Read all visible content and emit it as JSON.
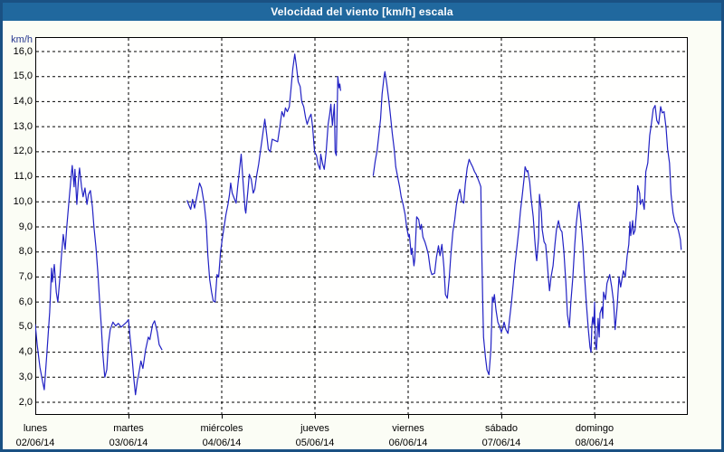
{
  "title": "Velocidad del viento [km/h] escala",
  "chart_data": {
    "type": "line",
    "title": "Velocidad del viento [km/h] escala",
    "y_unit_label": "km/h",
    "ylabel": "km/h",
    "y_tick_labels": [
      "16,0",
      "15,0",
      "14,0",
      "13,0",
      "12,0",
      "11,0",
      "10,0",
      "9,0",
      "8,0",
      "7,0",
      "6,0",
      "5,0",
      "4,0",
      "3,0",
      "2,0"
    ],
    "ylim": [
      2,
      16
    ],
    "y_step": 1.0,
    "grid": "dashed",
    "legend": "none",
    "line_color": "#2222c4",
    "x_span_hours": 168,
    "x_days": [
      {
        "name": "lunes",
        "date": "02/06/14"
      },
      {
        "name": "martes",
        "date": "03/06/14"
      },
      {
        "name": "miércoles",
        "date": "04/06/14"
      },
      {
        "name": "jueves",
        "date": "05/06/14"
      },
      {
        "name": "viernes",
        "date": "06/06/14"
      },
      {
        "name": "sábado",
        "date": "07/06/14"
      },
      {
        "name": "domingo",
        "date": "08/06/14"
      }
    ],
    "note": "wind speed km/h sampled over 7 days; two data gaps (t≈32.6-39.1h and t≈78.6-87.0h)",
    "segments": [
      [
        [
          0.0,
          5.1
        ],
        [
          0.5,
          4.3
        ],
        [
          1.2,
          3.4
        ],
        [
          1.9,
          2.8
        ],
        [
          2.3,
          2.5
        ],
        [
          3.0,
          4.0
        ],
        [
          3.7,
          5.6
        ],
        [
          4.2,
          7.35
        ],
        [
          4.4,
          6.8
        ],
        [
          4.9,
          7.5
        ],
        [
          5.4,
          6.4
        ],
        [
          5.8,
          6.0
        ],
        [
          6.3,
          6.9
        ],
        [
          6.7,
          7.8
        ],
        [
          7.2,
          8.7
        ],
        [
          7.7,
          8.1
        ],
        [
          8.1,
          9.0
        ],
        [
          8.6,
          9.9
        ],
        [
          9.1,
          10.8
        ],
        [
          9.5,
          11.45
        ],
        [
          10.0,
          10.6
        ],
        [
          10.2,
          11.3
        ],
        [
          10.7,
          9.9
        ],
        [
          11.2,
          11.1
        ],
        [
          11.4,
          11.35
        ],
        [
          11.9,
          10.6
        ],
        [
          12.3,
          10.2
        ],
        [
          12.8,
          10.55
        ],
        [
          13.3,
          9.9
        ],
        [
          13.7,
          10.3
        ],
        [
          14.2,
          10.45
        ],
        [
          14.7,
          9.8
        ],
        [
          15.1,
          9.0
        ],
        [
          15.6,
          8.2
        ],
        [
          16.1,
          7.2
        ],
        [
          16.5,
          6.2
        ],
        [
          17.0,
          5.0
        ],
        [
          17.4,
          3.9
        ],
        [
          17.9,
          3.0
        ],
        [
          18.4,
          3.3
        ],
        [
          18.8,
          4.3
        ],
        [
          19.3,
          4.9
        ],
        [
          20.0,
          5.2
        ],
        [
          20.7,
          5.05
        ],
        [
          21.4,
          5.15
        ],
        [
          22.1,
          5.0
        ],
        [
          22.8,
          5.1
        ],
        [
          23.5,
          5.2
        ],
        [
          24.0,
          5.3
        ],
        [
          24.4,
          4.6
        ],
        [
          24.9,
          3.8
        ],
        [
          25.4,
          2.9
        ],
        [
          25.8,
          2.3
        ],
        [
          26.3,
          2.9
        ],
        [
          26.5,
          3.0
        ],
        [
          27.2,
          3.65
        ],
        [
          27.7,
          3.35
        ],
        [
          28.4,
          4.1
        ],
        [
          29.1,
          4.6
        ],
        [
          29.5,
          4.5
        ],
        [
          30.2,
          5.1
        ],
        [
          30.7,
          5.25
        ],
        [
          31.4,
          4.8
        ],
        [
          31.9,
          4.3
        ],
        [
          32.6,
          4.1
        ]
      ],
      [
        [
          39.1,
          10.05
        ],
        [
          39.6,
          9.85
        ],
        [
          40.0,
          9.7
        ],
        [
          40.5,
          10.1
        ],
        [
          41.0,
          9.75
        ],
        [
          41.7,
          10.3
        ],
        [
          42.3,
          10.75
        ],
        [
          42.8,
          10.55
        ],
        [
          43.5,
          9.9
        ],
        [
          44.0,
          9.2
        ],
        [
          44.4,
          7.9
        ],
        [
          44.9,
          6.9
        ],
        [
          45.4,
          6.4
        ],
        [
          45.8,
          6.05
        ],
        [
          46.3,
          6.0
        ],
        [
          46.8,
          7.1
        ],
        [
          47.2,
          7.0
        ],
        [
          47.7,
          8.0
        ],
        [
          48.2,
          8.6
        ],
        [
          48.6,
          9.0
        ],
        [
          49.1,
          9.5
        ],
        [
          49.6,
          9.9
        ],
        [
          50.0,
          10.3
        ],
        [
          50.3,
          10.75
        ],
        [
          50.7,
          10.35
        ],
        [
          51.2,
          10.15
        ],
        [
          51.7,
          9.95
        ],
        [
          52.1,
          10.6
        ],
        [
          52.6,
          11.3
        ],
        [
          53.0,
          11.9
        ],
        [
          53.5,
          10.8
        ],
        [
          54.0,
          9.7
        ],
        [
          54.2,
          9.55
        ],
        [
          54.7,
          10.4
        ],
        [
          55.1,
          11.1
        ],
        [
          55.6,
          10.9
        ],
        [
          56.1,
          10.35
        ],
        [
          56.5,
          10.5
        ],
        [
          57.0,
          11.05
        ],
        [
          57.5,
          11.5
        ],
        [
          57.9,
          11.95
        ],
        [
          58.4,
          12.5
        ],
        [
          59.1,
          13.3
        ],
        [
          59.6,
          12.65
        ],
        [
          60.0,
          12.1
        ],
        [
          60.5,
          12.0
        ],
        [
          61.0,
          12.5
        ],
        [
          61.7,
          12.45
        ],
        [
          62.4,
          12.4
        ],
        [
          63.0,
          13.05
        ],
        [
          63.5,
          13.6
        ],
        [
          64.0,
          13.4
        ],
        [
          64.4,
          13.75
        ],
        [
          64.9,
          13.6
        ],
        [
          65.4,
          13.8
        ],
        [
          65.8,
          14.45
        ],
        [
          66.3,
          15.3
        ],
        [
          66.8,
          15.9
        ],
        [
          67.2,
          15.45
        ],
        [
          67.7,
          14.8
        ],
        [
          68.2,
          14.6
        ],
        [
          68.6,
          14.0
        ],
        [
          69.1,
          13.8
        ],
        [
          69.6,
          13.35
        ],
        [
          70.0,
          13.1
        ],
        [
          70.5,
          13.35
        ],
        [
          71.0,
          13.5
        ],
        [
          71.4,
          13.0
        ],
        [
          71.9,
          12.0
        ],
        [
          72.4,
          11.85
        ],
        [
          72.8,
          11.5
        ],
        [
          73.3,
          11.3
        ],
        [
          73.5,
          11.9
        ],
        [
          74.0,
          11.5
        ],
        [
          74.4,
          11.3
        ],
        [
          74.9,
          12.0
        ],
        [
          75.4,
          13.1
        ],
        [
          75.8,
          13.5
        ],
        [
          76.1,
          13.9
        ],
        [
          76.5,
          13.05
        ],
        [
          77.0,
          13.9
        ],
        [
          77.2,
          12.0
        ],
        [
          77.5,
          11.85
        ],
        [
          77.9,
          15.0
        ],
        [
          78.2,
          14.55
        ],
        [
          78.4,
          14.7
        ],
        [
          78.6,
          14.45
        ]
      ],
      [
        [
          87.0,
          11.05
        ],
        [
          87.5,
          11.6
        ],
        [
          88.0,
          12.05
        ],
        [
          88.4,
          12.6
        ],
        [
          88.9,
          13.3
        ],
        [
          89.3,
          14.3
        ],
        [
          89.8,
          15.0
        ],
        [
          90.0,
          15.2
        ],
        [
          90.5,
          14.7
        ],
        [
          91.0,
          14.1
        ],
        [
          91.4,
          13.5
        ],
        [
          91.9,
          12.75
        ],
        [
          92.4,
          12.1
        ],
        [
          92.8,
          11.4
        ],
        [
          93.3,
          11.0
        ],
        [
          93.8,
          10.6
        ],
        [
          94.2,
          10.2
        ],
        [
          94.7,
          9.9
        ],
        [
          95.2,
          9.5
        ],
        [
          95.6,
          9.0
        ],
        [
          96.1,
          8.6
        ],
        [
          96.3,
          8.7
        ],
        [
          96.8,
          7.9
        ],
        [
          97.0,
          8.15
        ],
        [
          97.5,
          7.45
        ],
        [
          97.7,
          7.7
        ],
        [
          98.2,
          9.4
        ],
        [
          98.7,
          9.3
        ],
        [
          99.1,
          8.9
        ],
        [
          99.4,
          9.1
        ],
        [
          99.8,
          8.6
        ],
        [
          100.3,
          8.4
        ],
        [
          100.7,
          8.2
        ],
        [
          101.2,
          7.9
        ],
        [
          101.7,
          7.3
        ],
        [
          102.1,
          7.1
        ],
        [
          102.8,
          7.15
        ],
        [
          103.3,
          7.8
        ],
        [
          103.8,
          8.25
        ],
        [
          104.2,
          7.85
        ],
        [
          104.7,
          8.3
        ],
        [
          105.2,
          7.4
        ],
        [
          105.6,
          6.3
        ],
        [
          106.1,
          6.15
        ],
        [
          106.6,
          7.0
        ],
        [
          107.0,
          7.9
        ],
        [
          107.5,
          8.8
        ],
        [
          108.0,
          9.3
        ],
        [
          108.4,
          9.85
        ],
        [
          108.9,
          10.3
        ],
        [
          109.3,
          10.5
        ],
        [
          109.8,
          10.05
        ],
        [
          110.3,
          9.95
        ],
        [
          110.7,
          10.7
        ],
        [
          111.2,
          11.35
        ],
        [
          111.7,
          11.7
        ],
        [
          112.1,
          11.55
        ],
        [
          112.6,
          11.4
        ],
        [
          113.1,
          11.2
        ],
        [
          113.5,
          11.1
        ],
        [
          114.0,
          10.9
        ],
        [
          114.5,
          10.7
        ],
        [
          114.7,
          10.6
        ],
        [
          114.9,
          8.5
        ],
        [
          115.2,
          6.0
        ],
        [
          115.4,
          4.6
        ],
        [
          115.9,
          3.8
        ],
        [
          116.3,
          3.3
        ],
        [
          116.8,
          3.1
        ],
        [
          117.3,
          4.1
        ],
        [
          117.7,
          6.2
        ],
        [
          117.9,
          6.0
        ],
        [
          118.2,
          6.3
        ],
        [
          118.6,
          5.7
        ],
        [
          119.1,
          5.2
        ],
        [
          119.6,
          5.0
        ],
        [
          120.0,
          4.8
        ],
        [
          120.5,
          5.05
        ],
        [
          120.7,
          5.2
        ],
        [
          121.2,
          4.9
        ],
        [
          121.7,
          4.75
        ],
        [
          122.1,
          5.3
        ],
        [
          122.6,
          6.0
        ],
        [
          123.1,
          6.8
        ],
        [
          123.5,
          7.5
        ],
        [
          124.0,
          8.2
        ],
        [
          124.5,
          8.9
        ],
        [
          124.9,
          9.6
        ],
        [
          125.4,
          10.3
        ],
        [
          125.9,
          11.0
        ],
        [
          126.1,
          11.4
        ],
        [
          126.6,
          11.2
        ],
        [
          126.8,
          11.25
        ],
        [
          127.3,
          10.8
        ],
        [
          127.7,
          10.1
        ],
        [
          128.2,
          9.4
        ],
        [
          128.6,
          8.5
        ],
        [
          128.9,
          7.9
        ],
        [
          129.1,
          7.65
        ],
        [
          129.6,
          8.6
        ],
        [
          129.8,
          10.3
        ],
        [
          130.3,
          9.6
        ],
        [
          130.5,
          8.9
        ],
        [
          131.0,
          8.4
        ],
        [
          131.4,
          8.3
        ],
        [
          131.7,
          7.8
        ],
        [
          132.1,
          7.0
        ],
        [
          132.4,
          6.45
        ],
        [
          132.8,
          7.0
        ],
        [
          133.3,
          7.45
        ],
        [
          133.8,
          8.3
        ],
        [
          134.2,
          8.9
        ],
        [
          134.7,
          9.25
        ],
        [
          135.2,
          8.9
        ],
        [
          135.6,
          8.8
        ],
        [
          136.1,
          8.0
        ],
        [
          136.6,
          6.8
        ],
        [
          137.0,
          5.5
        ],
        [
          137.5,
          5.0
        ],
        [
          137.9,
          6.0
        ],
        [
          138.4,
          7.0
        ],
        [
          138.9,
          8.3
        ],
        [
          139.3,
          9.15
        ],
        [
          139.8,
          9.85
        ],
        [
          140.0,
          10.0
        ],
        [
          140.5,
          9.15
        ],
        [
          141.0,
          8.2
        ],
        [
          141.4,
          7.1
        ],
        [
          141.9,
          5.9
        ],
        [
          142.4,
          4.9
        ],
        [
          142.8,
          4.2
        ],
        [
          143.1,
          4.0
        ],
        [
          143.3,
          5.05
        ],
        [
          143.5,
          5.4
        ],
        [
          143.8,
          5.1
        ],
        [
          144.0,
          6.0
        ],
        [
          144.2,
          4.3
        ],
        [
          144.5,
          4.1
        ],
        [
          144.9,
          5.35
        ],
        [
          145.2,
          4.6
        ],
        [
          145.4,
          5.55
        ],
        [
          145.9,
          5.8
        ],
        [
          146.1,
          5.35
        ],
        [
          146.3,
          6.4
        ],
        [
          146.8,
          6.1
        ],
        [
          147.2,
          6.75
        ],
        [
          147.7,
          7.0
        ],
        [
          147.9,
          7.1
        ],
        [
          148.4,
          6.6
        ],
        [
          148.9,
          6.0
        ],
        [
          149.3,
          4.9
        ],
        [
          149.8,
          5.8
        ],
        [
          150.3,
          7.0
        ],
        [
          150.7,
          6.6
        ],
        [
          151.2,
          7.05
        ],
        [
          151.4,
          7.25
        ],
        [
          151.9,
          7.0
        ],
        [
          152.4,
          7.85
        ],
        [
          152.8,
          8.3
        ],
        [
          153.1,
          9.2
        ],
        [
          153.3,
          8.65
        ],
        [
          153.8,
          9.25
        ],
        [
          154.0,
          8.7
        ],
        [
          154.4,
          8.85
        ],
        [
          154.9,
          9.8
        ],
        [
          155.1,
          10.65
        ],
        [
          155.6,
          10.35
        ],
        [
          155.8,
          9.9
        ],
        [
          156.3,
          10.1
        ],
        [
          156.8,
          9.7
        ],
        [
          157.2,
          11.2
        ],
        [
          157.7,
          11.55
        ],
        [
          158.2,
          12.65
        ],
        [
          158.6,
          13.1
        ],
        [
          159.1,
          13.7
        ],
        [
          159.6,
          13.85
        ],
        [
          160.0,
          13.25
        ],
        [
          160.5,
          13.1
        ],
        [
          161.0,
          13.8
        ],
        [
          161.4,
          13.55
        ],
        [
          161.9,
          13.6
        ],
        [
          162.4,
          12.95
        ],
        [
          162.8,
          12.1
        ],
        [
          163.3,
          11.55
        ],
        [
          163.7,
          10.3
        ],
        [
          164.2,
          9.55
        ],
        [
          164.7,
          9.2
        ],
        [
          165.1,
          9.1
        ],
        [
          165.6,
          8.85
        ],
        [
          166.1,
          8.5
        ],
        [
          166.3,
          8.1
        ]
      ]
    ]
  }
}
